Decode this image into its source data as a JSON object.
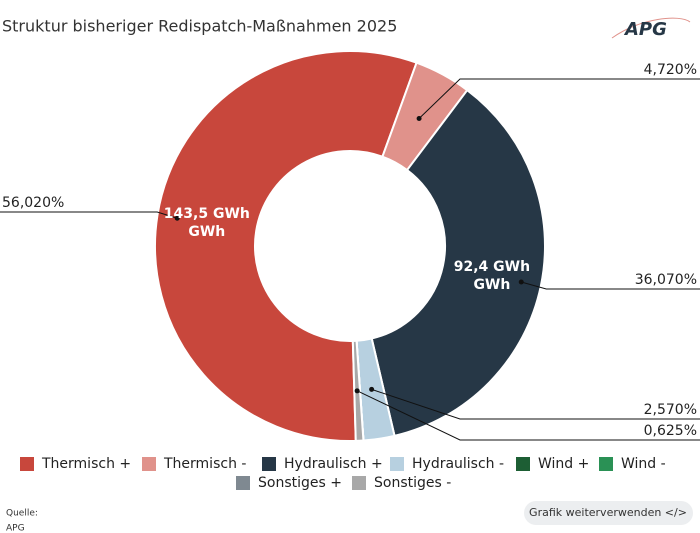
{
  "chart_data": {
    "type": "donut",
    "title": "Struktur bisheriger Redispatch-Maßnahmen 2025",
    "logo": "APG",
    "categories": [
      "Thermisch +",
      "Thermisch -",
      "Hydraulisch +",
      "Hydraulisch -",
      "Wind +",
      "Wind -",
      "Sonstiges +",
      "Sonstiges -"
    ],
    "values": [
      56.02,
      4.72,
      36.07,
      2.57,
      0,
      0,
      0,
      0.625
    ],
    "value_labels": [
      "56,020%",
      "4,720%",
      "36,070%",
      "2,570%",
      null,
      null,
      null,
      "0,625%"
    ],
    "inner_labels": [
      [
        "143,5 GWh",
        "GWh"
      ],
      null,
      [
        "92,4 GWh",
        "GWh"
      ],
      null,
      null,
      null,
      null,
      null
    ],
    "colors": [
      "#c8473c",
      "#e0928b",
      "#263746",
      "#b7d0e0",
      "#1d5e34",
      "#2a9155",
      "#7f8991",
      "#a8a8a8"
    ],
    "source_label": "Quelle:",
    "source": "APG",
    "button": "Grafik weiterverwenden </>"
  }
}
